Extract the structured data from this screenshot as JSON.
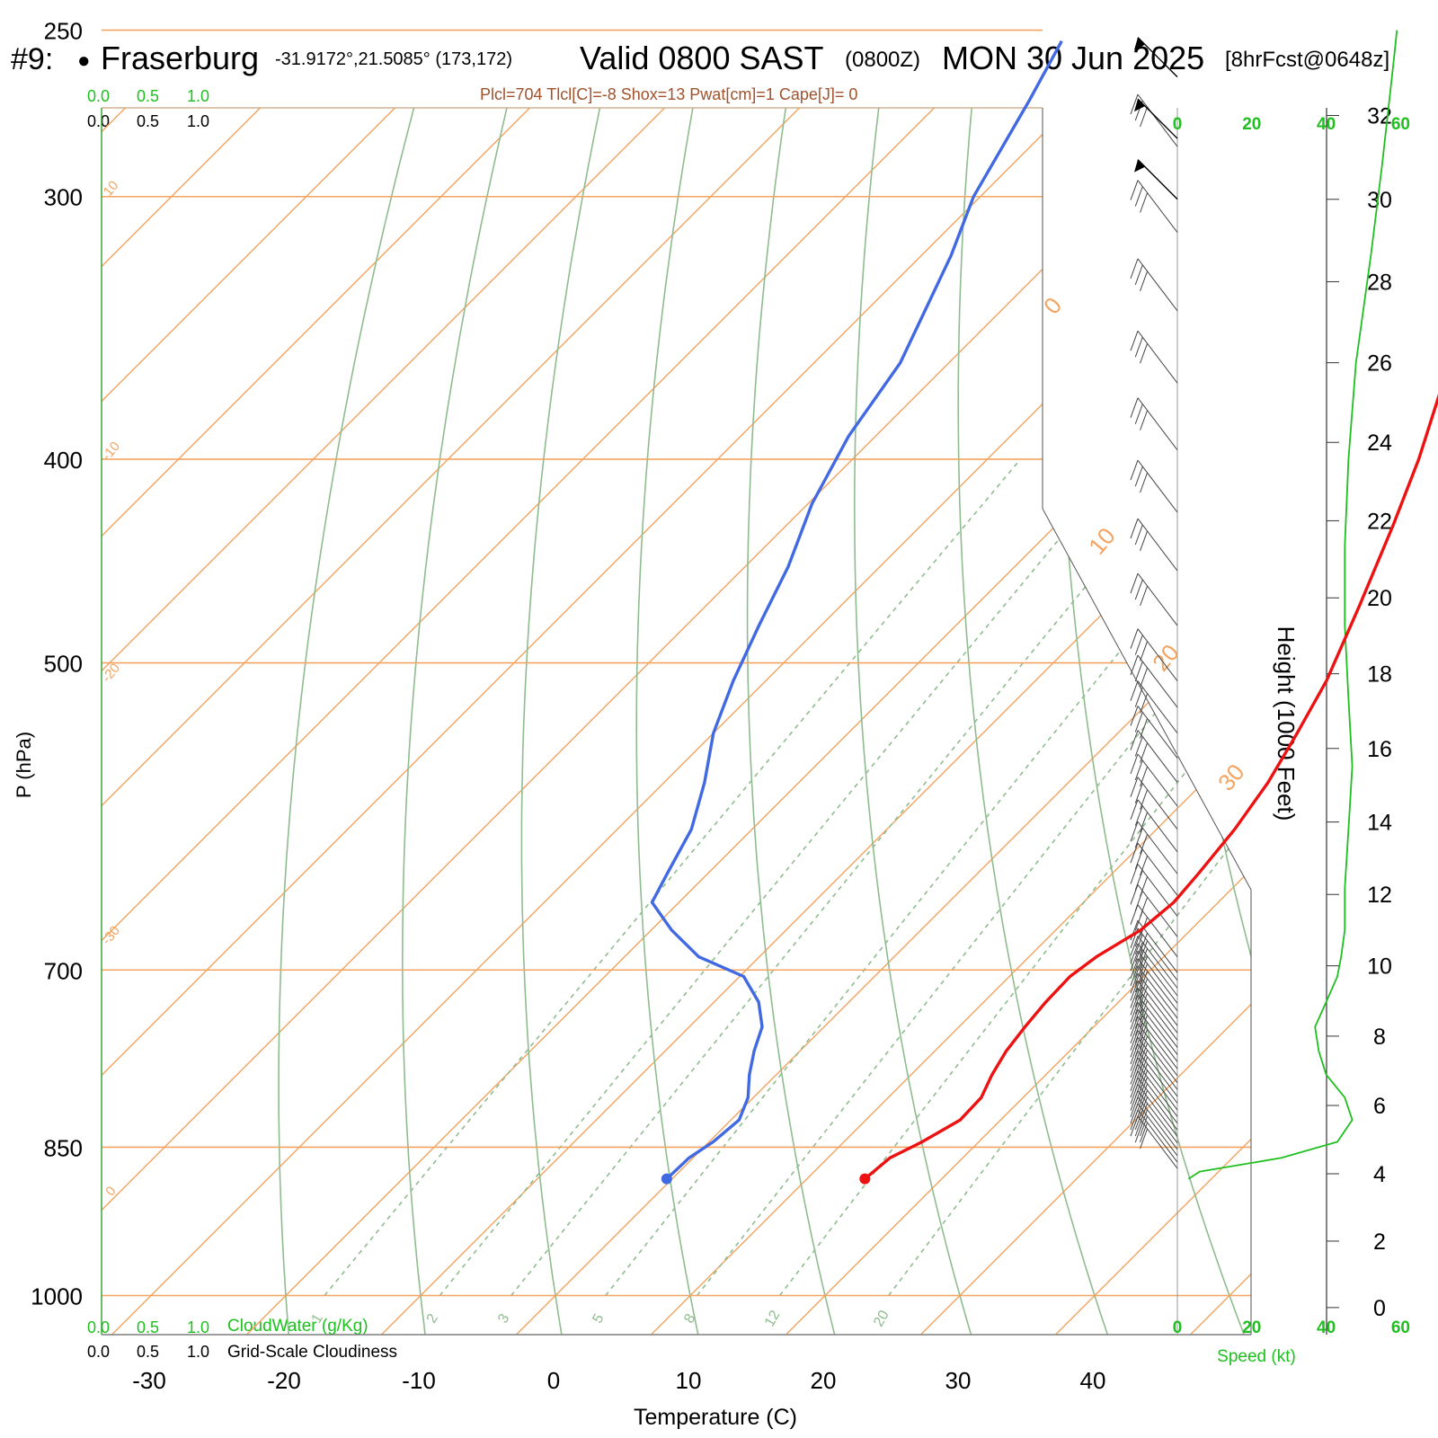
{
  "header": {
    "station_id": "#9:",
    "bullet": "●",
    "station_name": "Fraserburg",
    "coords": "-31.9172°,21.5085° (173,172)",
    "valid": "Valid 0800 SAST",
    "zulu": "(0800Z)",
    "date": "MON 30 Jun 2025",
    "forecast": "[8hrFcst@0648z]"
  },
  "indices": "Plcl=704 Tlcl[C]=-8 Shox=13 Pwat[cm]=1 Cape[J]= 0",
  "scales": {
    "green_top": [
      "0.0",
      "0.5",
      "1.0"
    ],
    "black_top": [
      "0.0",
      "0.5",
      "1.0"
    ],
    "green_bottom": [
      "0.0",
      "0.5",
      "1.0"
    ],
    "cloudwater_label": "CloudWater (g/Kg)",
    "black_bottom": [
      "0.0",
      "0.5",
      "1.0"
    ],
    "cloudiness_label": "Grid-Scale Cloudiness"
  },
  "axes": {
    "ylabel": "P (hPa)",
    "xlabel": "Temperature (C)",
    "height_label": "Height (1000 Feet)",
    "speed_label": "Speed (kt)"
  },
  "chart_data": {
    "type": "skew-t",
    "pressure_ticks": [
      250,
      300,
      400,
      500,
      700,
      850,
      1000
    ],
    "temperature_ticks": [
      -30,
      -20,
      -10,
      0,
      10,
      20,
      30,
      40
    ],
    "height_ticks": [
      0,
      2,
      4,
      6,
      8,
      10,
      12,
      14,
      16,
      18,
      20,
      22,
      24,
      26,
      28,
      30,
      32
    ],
    "speed_ticks": [
      0,
      20,
      40,
      60
    ],
    "mixing_ratio_labels": [
      "1",
      "2",
      "3",
      "5",
      "8",
      "12",
      "20"
    ],
    "isotherm_labels": [
      "10",
      "0",
      "-10",
      "-20",
      "-30",
      "0",
      "10",
      "20",
      "30"
    ],
    "series": [
      {
        "name": "Temperature",
        "color": "#ee1111",
        "points": [
          [
            880,
            14.3
          ],
          [
            860,
            14.6
          ],
          [
            845,
            15.8
          ],
          [
            825,
            17.0
          ],
          [
            805,
            16.9
          ],
          [
            785,
            16.0
          ],
          [
            765,
            15.3
          ],
          [
            745,
            14.9
          ],
          [
            725,
            14.6
          ],
          [
            705,
            14.5
          ],
          [
            690,
            15.0
          ],
          [
            670,
            16.3
          ],
          [
            650,
            16.7
          ],
          [
            630,
            16.4
          ],
          [
            600,
            15.8
          ],
          [
            570,
            14.8
          ],
          [
            540,
            13.3
          ],
          [
            510,
            11.6
          ],
          [
            470,
            8.5
          ],
          [
            430,
            5.0
          ],
          [
            400,
            2.0
          ],
          [
            370,
            -1.6
          ],
          [
            340,
            -5.6
          ],
          [
            310,
            -9.8
          ],
          [
            290,
            -12.7
          ],
          [
            270,
            -15.9
          ],
          [
            253,
            -19.0
          ]
        ]
      },
      {
        "name": "Dewpoint",
        "color": "#4169e1",
        "points": [
          [
            880,
            -0.4
          ],
          [
            860,
            -0.3
          ],
          [
            845,
            0.3
          ],
          [
            825,
            0.6
          ],
          [
            805,
            -0.4
          ],
          [
            785,
            -2.0
          ],
          [
            765,
            -3.4
          ],
          [
            745,
            -4.6
          ],
          [
            725,
            -6.7
          ],
          [
            705,
            -9.7
          ],
          [
            690,
            -14.5
          ],
          [
            670,
            -18.5
          ],
          [
            650,
            -22.0
          ],
          [
            630,
            -23.0
          ],
          [
            600,
            -24.5
          ],
          [
            570,
            -27.0
          ],
          [
            540,
            -30.0
          ],
          [
            510,
            -32.4
          ],
          [
            480,
            -34.6
          ],
          [
            450,
            -36.8
          ],
          [
            420,
            -39.7
          ],
          [
            390,
            -42.0
          ],
          [
            360,
            -43.6
          ],
          [
            320,
            -47.8
          ],
          [
            300,
            -50.5
          ],
          [
            270,
            -53.5
          ],
          [
            253,
            -55.5
          ]
        ]
      }
    ],
    "surface": {
      "pressure": 880,
      "temperature": 14.3,
      "dewpoint": -0.4
    },
    "wind_speed_profile": {
      "name": "Speed (kt)",
      "points": [
        [
          880,
          3
        ],
        [
          873,
          6
        ],
        [
          860,
          28
        ],
        [
          845,
          43
        ],
        [
          825,
          47
        ],
        [
          805,
          45
        ],
        [
          785,
          40
        ],
        [
          765,
          38
        ],
        [
          745,
          37
        ],
        [
          725,
          40
        ],
        [
          705,
          43
        ],
        [
          690,
          44
        ],
        [
          670,
          45
        ],
        [
          640,
          45
        ],
        [
          600,
          46
        ],
        [
          560,
          47
        ],
        [
          520,
          46
        ],
        [
          480,
          45
        ],
        [
          440,
          45
        ],
        [
          400,
          46
        ],
        [
          360,
          48
        ],
        [
          320,
          52
        ],
        [
          290,
          55
        ],
        [
          260,
          58
        ],
        [
          250,
          59
        ]
      ]
    }
  },
  "colors": {
    "temperature": "#ee1111",
    "dewpoint": "#4169e1",
    "isotherm": "#f4a460",
    "dry_adiabat": "#8fbc8f",
    "mixing_ratio": "#8fbc8f",
    "accent_green": "#1fbf1f",
    "indices_text": "#a0522d"
  }
}
